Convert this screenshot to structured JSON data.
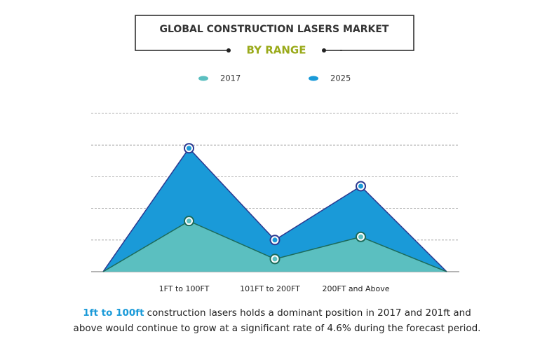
{
  "chart_data": {
    "type": "area",
    "title": "GLOBAL CONSTRUCTION LASERS MARKET",
    "subtitle": "BY RANGE",
    "categories": [
      null,
      "1FT to 100FT",
      "101FT to 200FT",
      "200FT and Above",
      null
    ],
    "series": [
      {
        "name": "2025",
        "color": "#1a9ad8",
        "line_color": "#2b3990",
        "values": [
          0,
          3.9,
          1.0,
          2.7,
          0
        ]
      },
      {
        "name": "2017",
        "color": "#5bbfc0",
        "line_color": "#1d6b5a",
        "values": [
          0,
          1.6,
          0.4,
          1.1,
          0
        ]
      }
    ],
    "legend_order": [
      1,
      0
    ],
    "ylim": [
      0,
      5
    ],
    "yticks": [
      0,
      1,
      2,
      3,
      4,
      5
    ],
    "grid": true,
    "annotation": {
      "highlight": "1ft to 100ft",
      "line1": "construction lasers  holds a dominant position in 2017 and 201ft and",
      "line2": "above would continue to grow at a significant rate of 4.6% during the forecast period."
    }
  }
}
